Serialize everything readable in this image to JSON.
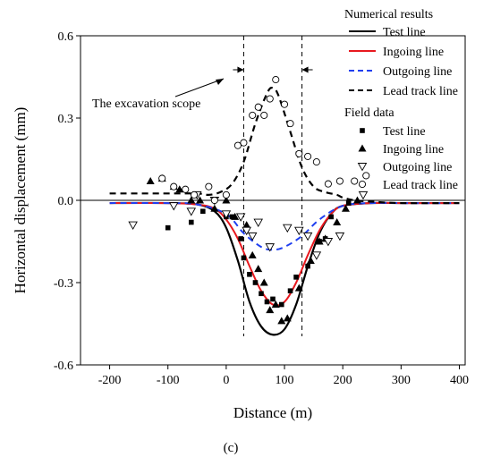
{
  "panel_label": "(c)",
  "chart_data": {
    "type": "line",
    "xlabel": "Distance (m)",
    "ylabel": "Horizontal displacement (mm)",
    "xlim": [
      -250,
      410
    ],
    "ylim": [
      -0.6,
      0.6
    ],
    "xticks": [
      -200,
      -100,
      0,
      100,
      200,
      300,
      400
    ],
    "yticks": [
      -0.6,
      -0.3,
      0.0,
      0.3,
      0.6
    ],
    "xtick_labels": [
      "-200",
      "-100",
      "0",
      "100",
      "200",
      "300",
      "400"
    ],
    "ytick_labels": [
      "-0.6",
      "-0.3",
      "0.0",
      "0.3",
      "0.6"
    ],
    "grid": false,
    "zero_line": true,
    "legend_position": "top-right",
    "legend_groups": [
      {
        "title": "Numerical results",
        "entries": [
          "Test line",
          "Ingoing line",
          "Outgoing line",
          "Lead track line"
        ]
      },
      {
        "title": "Field data",
        "entries": [
          "Test line",
          "Ingoing line",
          "Outgoing line",
          "Lead track line"
        ]
      }
    ],
    "annotation": {
      "text": "The excavation scope",
      "x_range": [
        30,
        130
      ]
    },
    "numerical_series": [
      {
        "name": "Test line",
        "style": "solid",
        "color": "#000000",
        "x": [
          -200,
          -100,
          -50,
          -20,
          0,
          20,
          40,
          60,
          80,
          100,
          120,
          140,
          160,
          180,
          200,
          250,
          300,
          400
        ],
        "y": [
          -0.01,
          -0.01,
          -0.015,
          -0.04,
          -0.1,
          -0.22,
          -0.37,
          -0.46,
          -0.49,
          -0.47,
          -0.38,
          -0.24,
          -0.12,
          -0.05,
          -0.02,
          -0.01,
          -0.01,
          -0.01
        ]
      },
      {
        "name": "Ingoing line",
        "style": "solid",
        "color": "#e8191f",
        "x": [
          -200,
          -100,
          -50,
          -20,
          0,
          20,
          40,
          60,
          80,
          100,
          120,
          140,
          160,
          180,
          200,
          250,
          300,
          400
        ],
        "y": [
          -0.01,
          -0.01,
          -0.015,
          -0.03,
          -0.07,
          -0.14,
          -0.24,
          -0.33,
          -0.38,
          -0.37,
          -0.3,
          -0.2,
          -0.11,
          -0.05,
          -0.02,
          -0.01,
          -0.01,
          -0.01
        ]
      },
      {
        "name": "Outgoing line",
        "style": "dashed",
        "color": "#1f3ff0",
        "x": [
          -200,
          -100,
          -50,
          0,
          30,
          60,
          80,
          100,
          130,
          160,
          200,
          250,
          300,
          400
        ],
        "y": [
          -0.01,
          -0.01,
          -0.015,
          -0.05,
          -0.12,
          -0.17,
          -0.18,
          -0.17,
          -0.13,
          -0.07,
          -0.02,
          -0.01,
          -0.01,
          -0.01
        ]
      },
      {
        "name": "Lead track line",
        "style": "dashed",
        "color": "#000000",
        "x": [
          -200,
          -100,
          -50,
          -30,
          -10,
          10,
          30,
          50,
          70,
          80,
          90,
          110,
          130,
          150,
          170,
          190,
          200,
          220,
          250,
          300,
          400
        ],
        "y": [
          0.025,
          0.025,
          0.025,
          0.02,
          0.03,
          0.06,
          0.14,
          0.28,
          0.39,
          0.41,
          0.38,
          0.25,
          0.12,
          0.05,
          0.03,
          0.02,
          0.01,
          0.0,
          -0.005,
          -0.01,
          -0.01
        ]
      }
    ],
    "field_series": [
      {
        "name": "Test line",
        "marker": "square",
        "x": [
          -100,
          -60,
          -40,
          0,
          10,
          25,
          30,
          40,
          50,
          60,
          70,
          80,
          95,
          110,
          120,
          140,
          160,
          170,
          180,
          210
        ],
        "y": [
          -0.1,
          -0.08,
          -0.04,
          -0.06,
          -0.06,
          -0.14,
          -0.21,
          -0.27,
          -0.3,
          -0.34,
          -0.37,
          -0.36,
          -0.38,
          -0.33,
          -0.28,
          -0.24,
          -0.15,
          -0.14,
          -0.06,
          -0.01
        ]
      },
      {
        "name": "Ingoing line",
        "marker": "triangle",
        "x": [
          -130,
          -110,
          -90,
          -80,
          -60,
          -45,
          -20,
          0,
          15,
          35,
          45,
          55,
          65,
          75,
          85,
          95,
          105,
          125,
          145,
          160,
          170,
          190,
          205,
          225
        ],
        "y": [
          0.07,
          0.08,
          0.05,
          0.04,
          0.0,
          0.0,
          -0.03,
          0.0,
          -0.06,
          -0.09,
          -0.2,
          -0.25,
          -0.3,
          -0.4,
          -0.38,
          -0.44,
          -0.43,
          -0.32,
          -0.22,
          -0.15,
          -0.14,
          -0.08,
          -0.03,
          0.0
        ]
      },
      {
        "name": "Outgoing line",
        "marker": "triangle-down",
        "x": [
          -160,
          -90,
          -60,
          -50,
          -20,
          0,
          25,
          35,
          45,
          55,
          75,
          105,
          125,
          140,
          155,
          175,
          195,
          235
        ],
        "y": [
          -0.09,
          -0.02,
          -0.04,
          0.02,
          0.0,
          -0.05,
          -0.06,
          -0.11,
          -0.13,
          -0.08,
          -0.17,
          -0.1,
          -0.11,
          -0.13,
          -0.2,
          -0.15,
          -0.13,
          0.02
        ]
      },
      {
        "name": "Lead track line",
        "marker": "circle",
        "x": [
          -110,
          -90,
          -70,
          -55,
          -30,
          -20,
          0,
          20,
          30,
          45,
          55,
          65,
          75,
          85,
          100,
          110,
          125,
          140,
          155,
          175,
          195,
          220,
          240
        ],
        "y": [
          0.08,
          0.05,
          0.04,
          0.02,
          0.05,
          0.0,
          0.02,
          0.2,
          0.21,
          0.31,
          0.34,
          0.31,
          0.37,
          0.44,
          0.35,
          0.28,
          0.17,
          0.16,
          0.14,
          0.06,
          0.07,
          0.07,
          0.09
        ]
      }
    ]
  }
}
